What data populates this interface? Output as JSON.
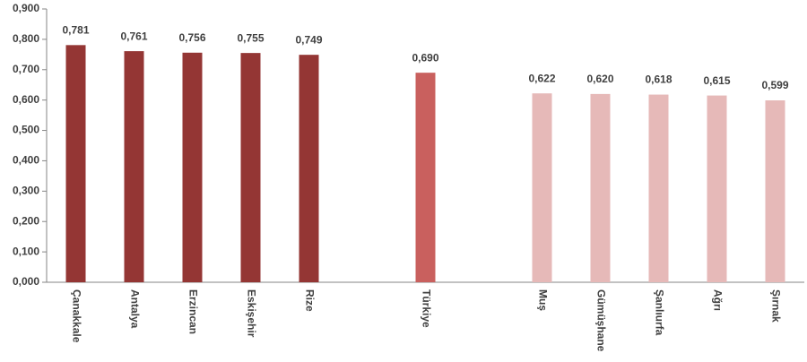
{
  "chart_data": {
    "type": "bar",
    "categories": [
      "Çanakkale",
      "Antalya",
      "Erzincan",
      "Eskişehir",
      "Rize",
      null,
      "Türkiye",
      null,
      "Muş",
      "Gümüşhane",
      "Şanlıurfa",
      "Ağrı",
      "Şırnak"
    ],
    "values": [
      0.781,
      0.761,
      0.756,
      0.755,
      0.749,
      null,
      0.69,
      null,
      0.622,
      0.62,
      0.618,
      0.615,
      0.599
    ],
    "value_labels": [
      "0,781",
      "0,761",
      "0,756",
      "0,755",
      "0,749",
      null,
      "0,690",
      null,
      "0,622",
      "0,620",
      "0,618",
      "0,615",
      "0,599"
    ],
    "colors": [
      "#943634",
      "#943634",
      "#943634",
      "#943634",
      "#943634",
      null,
      "#c9605e",
      null,
      "#e6b9b8",
      "#e6b9b8",
      "#e6b9b8",
      "#e6b9b8",
      "#e6b9b8"
    ],
    "ylim": [
      0,
      0.9
    ],
    "yticks": [
      {
        "value": 0,
        "label": "0,000"
      },
      {
        "value": 0.1,
        "label": "0,100"
      },
      {
        "value": 0.2,
        "label": "0,200"
      },
      {
        "value": 0.3,
        "label": "0,300"
      },
      {
        "value": 0.4,
        "label": "0,400"
      },
      {
        "value": 0.5,
        "label": "0,500"
      },
      {
        "value": 0.6,
        "label": "0,600"
      },
      {
        "value": 0.7,
        "label": "0,700"
      },
      {
        "value": 0.8,
        "label": "0,800"
      },
      {
        "value": 0.9,
        "label": "0,900"
      }
    ]
  }
}
